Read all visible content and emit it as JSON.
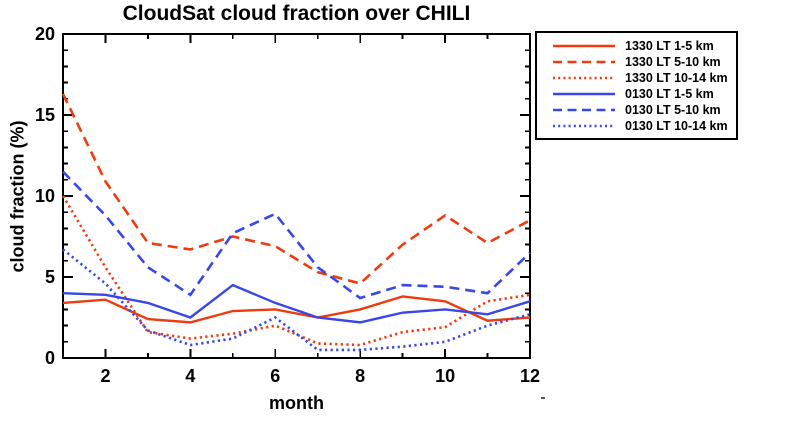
{
  "title": "CloudSat cloud fraction over CHILI",
  "colors": {
    "red_1330": "#ee3b0f",
    "blue_0130": "#3847e6",
    "axis": "#000000",
    "background": "#ffffff"
  },
  "chart_data": {
    "type": "line",
    "title": "CloudSat cloud fraction over CHILI",
    "xlabel": "month",
    "ylabel": "cloud fraction (%)",
    "xlim": [
      1,
      12
    ],
    "ylim": [
      0,
      20
    ],
    "x_major_ticks": [
      2,
      4,
      6,
      8,
      10,
      12
    ],
    "x_minor_step": 1,
    "y_major_ticks": [
      0,
      5,
      10,
      15,
      20
    ],
    "y_minor_step": 1,
    "grid": false,
    "legend_position": "outside-top-right",
    "x": [
      1,
      2,
      3,
      4,
      5,
      6,
      7,
      8,
      9,
      10,
      11,
      12
    ],
    "series": [
      {
        "name": "1330 LT 1-5 km",
        "color": "#ee3b0f",
        "style": "solid",
        "values": [
          3.4,
          3.6,
          2.4,
          2.2,
          2.9,
          3.0,
          2.5,
          3.0,
          3.8,
          3.5,
          2.3,
          2.5
        ]
      },
      {
        "name": "1330 LT 5-10 km",
        "color": "#ee3b0f",
        "style": "dashed",
        "values": [
          16.3,
          10.9,
          7.1,
          6.7,
          7.5,
          6.9,
          5.3,
          4.6,
          7.0,
          8.8,
          7.1,
          8.5
        ]
      },
      {
        "name": "1330 LT 10-14 km",
        "color": "#ee3b0f",
        "style": "dotted",
        "values": [
          10.0,
          5.6,
          1.6,
          1.2,
          1.5,
          2.0,
          0.9,
          0.8,
          1.6,
          1.9,
          3.5,
          3.9
        ]
      },
      {
        "name": "0130 LT 1-5 km",
        "color": "#3847e6",
        "style": "solid",
        "values": [
          4.0,
          3.9,
          3.4,
          2.5,
          4.5,
          3.4,
          2.5,
          2.2,
          2.8,
          3.0,
          2.7,
          3.5
        ]
      },
      {
        "name": "0130 LT 5-10 km",
        "color": "#3847e6",
        "style": "dashed",
        "values": [
          11.5,
          8.8,
          5.6,
          3.9,
          7.7,
          8.9,
          5.6,
          3.7,
          4.5,
          4.4,
          4.0,
          6.5
        ]
      },
      {
        "name": "0130 LT 10-14 km",
        "color": "#3847e6",
        "style": "dotted",
        "values": [
          6.7,
          4.6,
          1.7,
          0.8,
          1.2,
          2.5,
          0.5,
          0.5,
          0.7,
          1.0,
          2.0,
          2.7
        ]
      }
    ]
  }
}
